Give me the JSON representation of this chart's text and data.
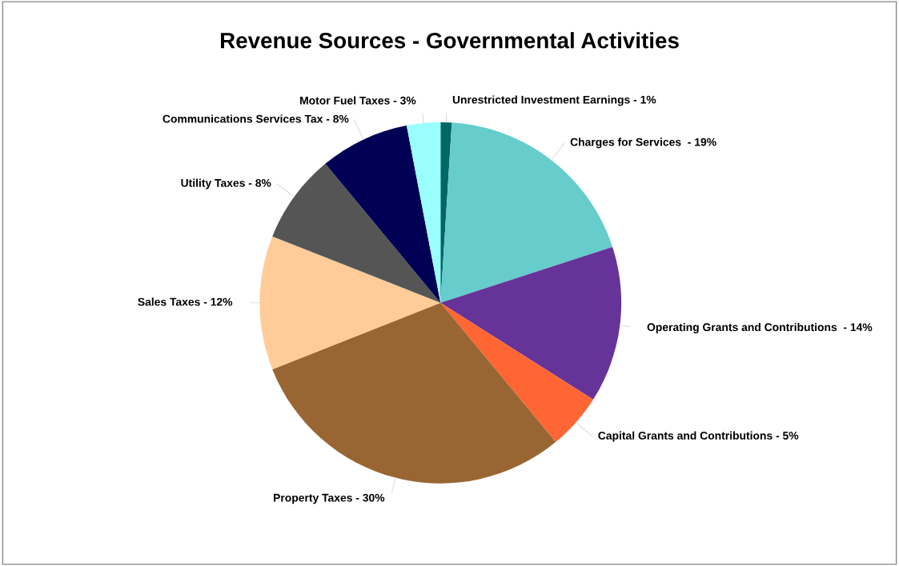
{
  "chart_data": {
    "type": "pie",
    "title": "Revenue Sources - Governmental Activities",
    "categories": [
      "Unrestricted Investment Earnings - 1%",
      "Charges for Services  - 19%",
      "Operating Grants and Contributions  - 14%",
      "Capital Grants and Contributions - 5%",
      "Property Taxes - 30%",
      "Sales Taxes - 12%",
      "Utility Taxes - 8%",
      "Communications Services Tax - 8%",
      "Motor Fuel Taxes - 3%"
    ],
    "values": [
      1,
      19,
      14,
      5,
      30,
      12,
      8,
      8,
      3
    ],
    "colors": [
      "#006666",
      "#66cccc",
      "#663399",
      "#ff6633",
      "#996633",
      "#ffcc99",
      "#555555",
      "#000055",
      "#99ffff"
    ],
    "legend": false
  }
}
